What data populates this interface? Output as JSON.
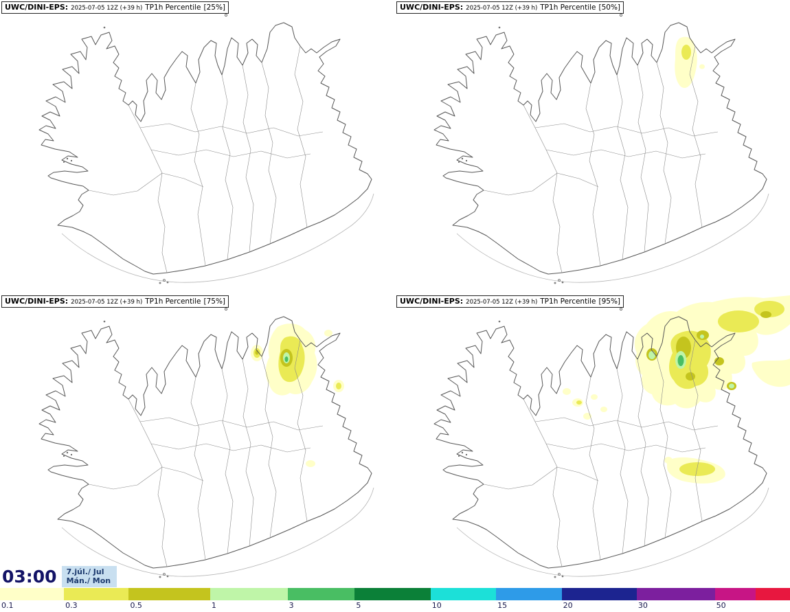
{
  "panels": [
    {
      "model": "UWC/DINI-EPS:",
      "run": "2025-07-05 12Z (+39 h)",
      "product": "TP1h Percentile",
      "percentile": "[25%]"
    },
    {
      "model": "UWC/DINI-EPS:",
      "run": "2025-07-05 12Z (+39 h)",
      "product": "TP1h Percentile",
      "percentile": "[50%]"
    },
    {
      "model": "UWC/DINI-EPS:",
      "run": "2025-07-05 12Z (+39 h)",
      "product": "TP1h Percentile",
      "percentile": "[75%]"
    },
    {
      "model": "UWC/DINI-EPS:",
      "run": "2025-07-05 12Z (+39 h)",
      "product": "TP1h Percentile",
      "percentile": "[95%]"
    }
  ],
  "footer": {
    "time": "03:00",
    "date": "7.júl./ Jul",
    "day": "Mán./ Mon"
  },
  "colorbar": {
    "segments": [
      {
        "label": "0.1",
        "color": "#FFFFC8",
        "width_pct": 8.1
      },
      {
        "label": "0.3",
        "color": "#EAEA55",
        "width_pct": 8.2
      },
      {
        "label": "0.5",
        "color": "#C4C41E",
        "width_pct": 10.3
      },
      {
        "label": "1",
        "color": "#BFF5A8",
        "width_pct": 9.8
      },
      {
        "label": "3",
        "color": "#49BE63",
        "width_pct": 8.5
      },
      {
        "label": "5",
        "color": "#0B8038",
        "width_pct": 9.6
      },
      {
        "label": "10",
        "color": "#1CE0D8",
        "width_pct": 8.3
      },
      {
        "label": "15",
        "color": "#2E9BE8",
        "width_pct": 8.3
      },
      {
        "label": "20",
        "color": "#1C2490",
        "width_pct": 9.5
      },
      {
        "label": "30",
        "color": "#7C1F9E",
        "width_pct": 9.9
      },
      {
        "label": "50",
        "color": "#C71585",
        "width_pct": 5.2
      },
      {
        "label": "",
        "color": "#E8173F",
        "width_pct": 4.3
      }
    ]
  },
  "palette": {
    "pale": "#FFFFC8",
    "yellow": "#EAEA55",
    "olive": "#C4C41E",
    "lightgreen": "#BFF5A8",
    "green": "#49BE63",
    "darkgreen": "#0B8038"
  }
}
